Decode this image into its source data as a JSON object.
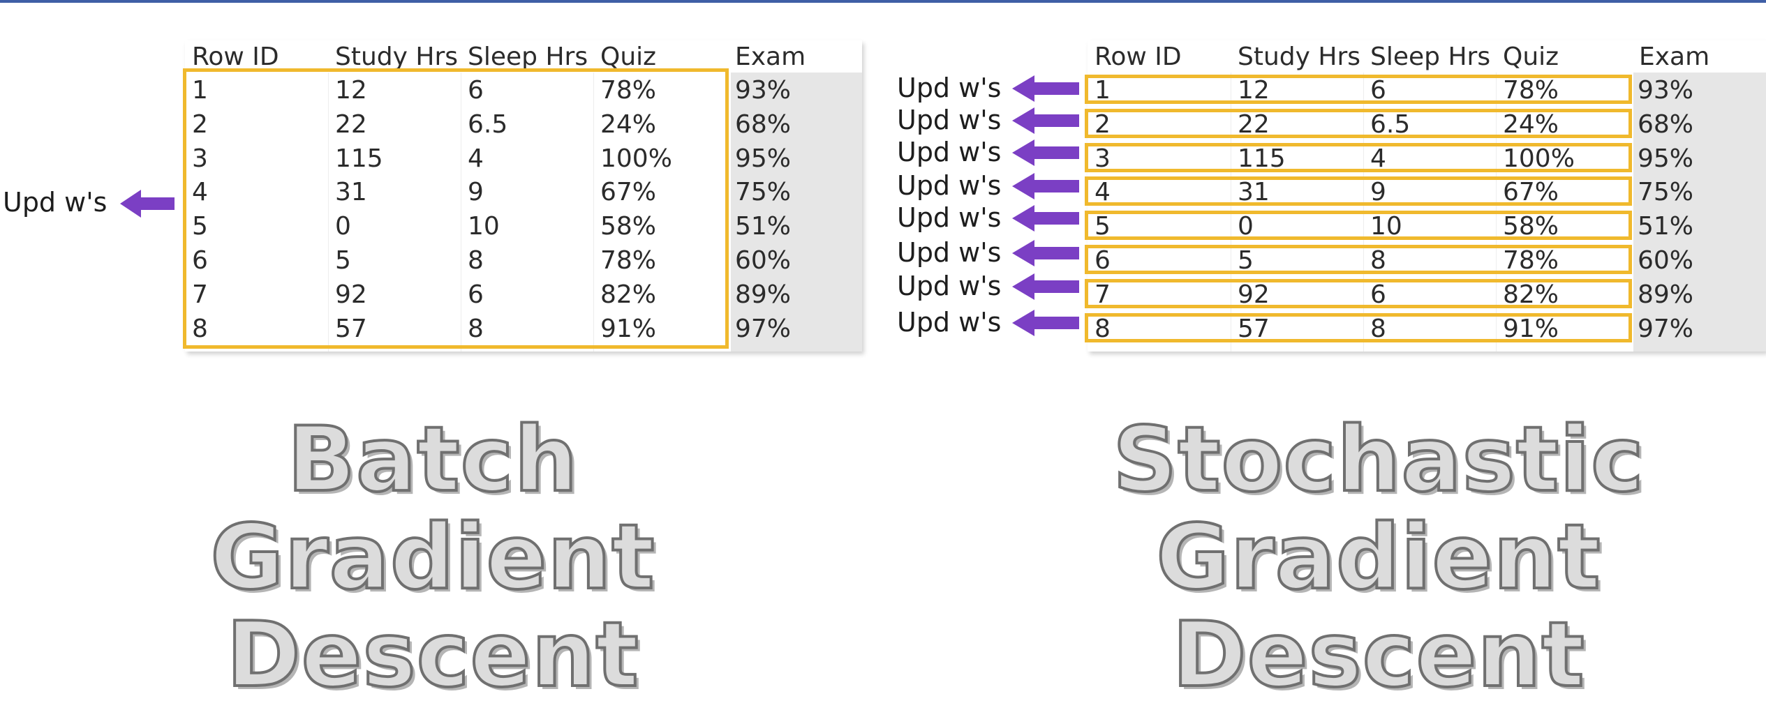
{
  "colors": {
    "highlight": "#f0b92d",
    "arrow": "#7b3fc4",
    "top_bar": "#3f5fa6"
  },
  "columns": [
    "Row ID",
    "Study Hrs",
    "Sleep Hrs",
    "Quiz",
    "Exam"
  ],
  "rows": [
    [
      "1",
      "12",
      "6",
      "78%",
      "93%"
    ],
    [
      "2",
      "22",
      "6.5",
      "24%",
      "68%"
    ],
    [
      "3",
      "115",
      "4",
      "100%",
      "95%"
    ],
    [
      "4",
      "31",
      "9",
      "67%",
      "75%"
    ],
    [
      "5",
      "0",
      "10",
      "58%",
      "51%"
    ],
    [
      "6",
      "5",
      "8",
      "78%",
      "60%"
    ],
    [
      "7",
      "92",
      "6",
      "82%",
      "89%"
    ],
    [
      "8",
      "57",
      "8",
      "91%",
      "97%"
    ]
  ],
  "update_label": "Upd w's",
  "left": {
    "title_lines": [
      "Batch",
      "Gradient",
      "Descent"
    ]
  },
  "right": {
    "title_lines": [
      "Stochastic",
      "Gradient",
      "Descent"
    ]
  }
}
